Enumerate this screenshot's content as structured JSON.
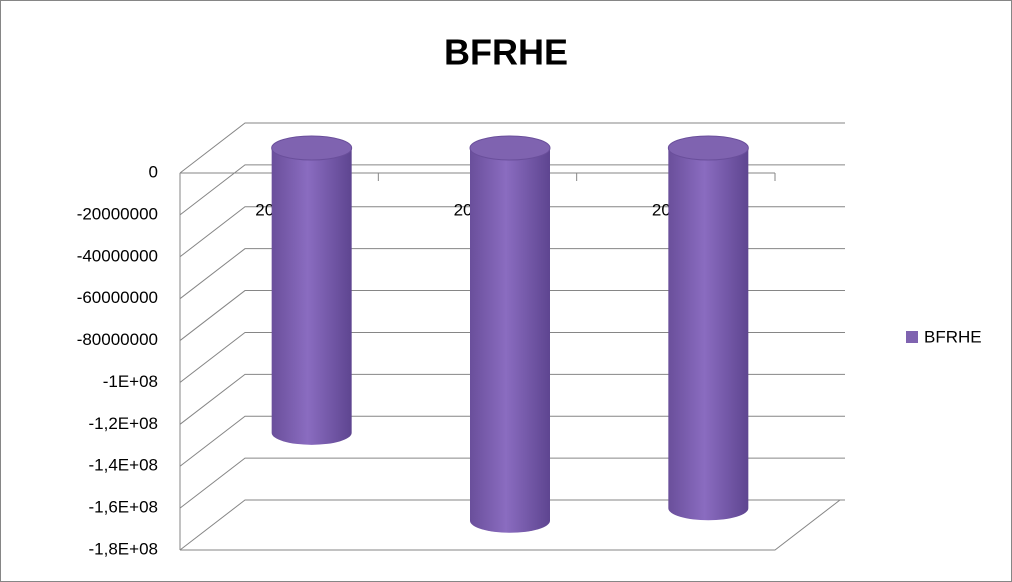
{
  "chart_data": {
    "type": "bar",
    "title": "BFRHE",
    "categories": [
      "2017",
      "2018",
      "2019"
    ],
    "series": [
      {
        "name": "BFRHE",
        "color": "#7f63b0",
        "values": [
          -136000000,
          -178000000,
          -172000000
        ]
      }
    ],
    "ylim": [
      -180000000,
      0
    ],
    "yticks": [
      {
        "value": -180000000,
        "label": "-1,8E+08"
      },
      {
        "value": -160000000,
        "label": "-1,6E+08"
      },
      {
        "value": -140000000,
        "label": "-1,4E+08"
      },
      {
        "value": -120000000,
        "label": "-1,2E+08"
      },
      {
        "value": -100000000,
        "label": "-1E+08"
      },
      -80000000,
      -60000000,
      -40000000,
      -20000000,
      0
    ],
    "grid": true,
    "legend": "right"
  }
}
